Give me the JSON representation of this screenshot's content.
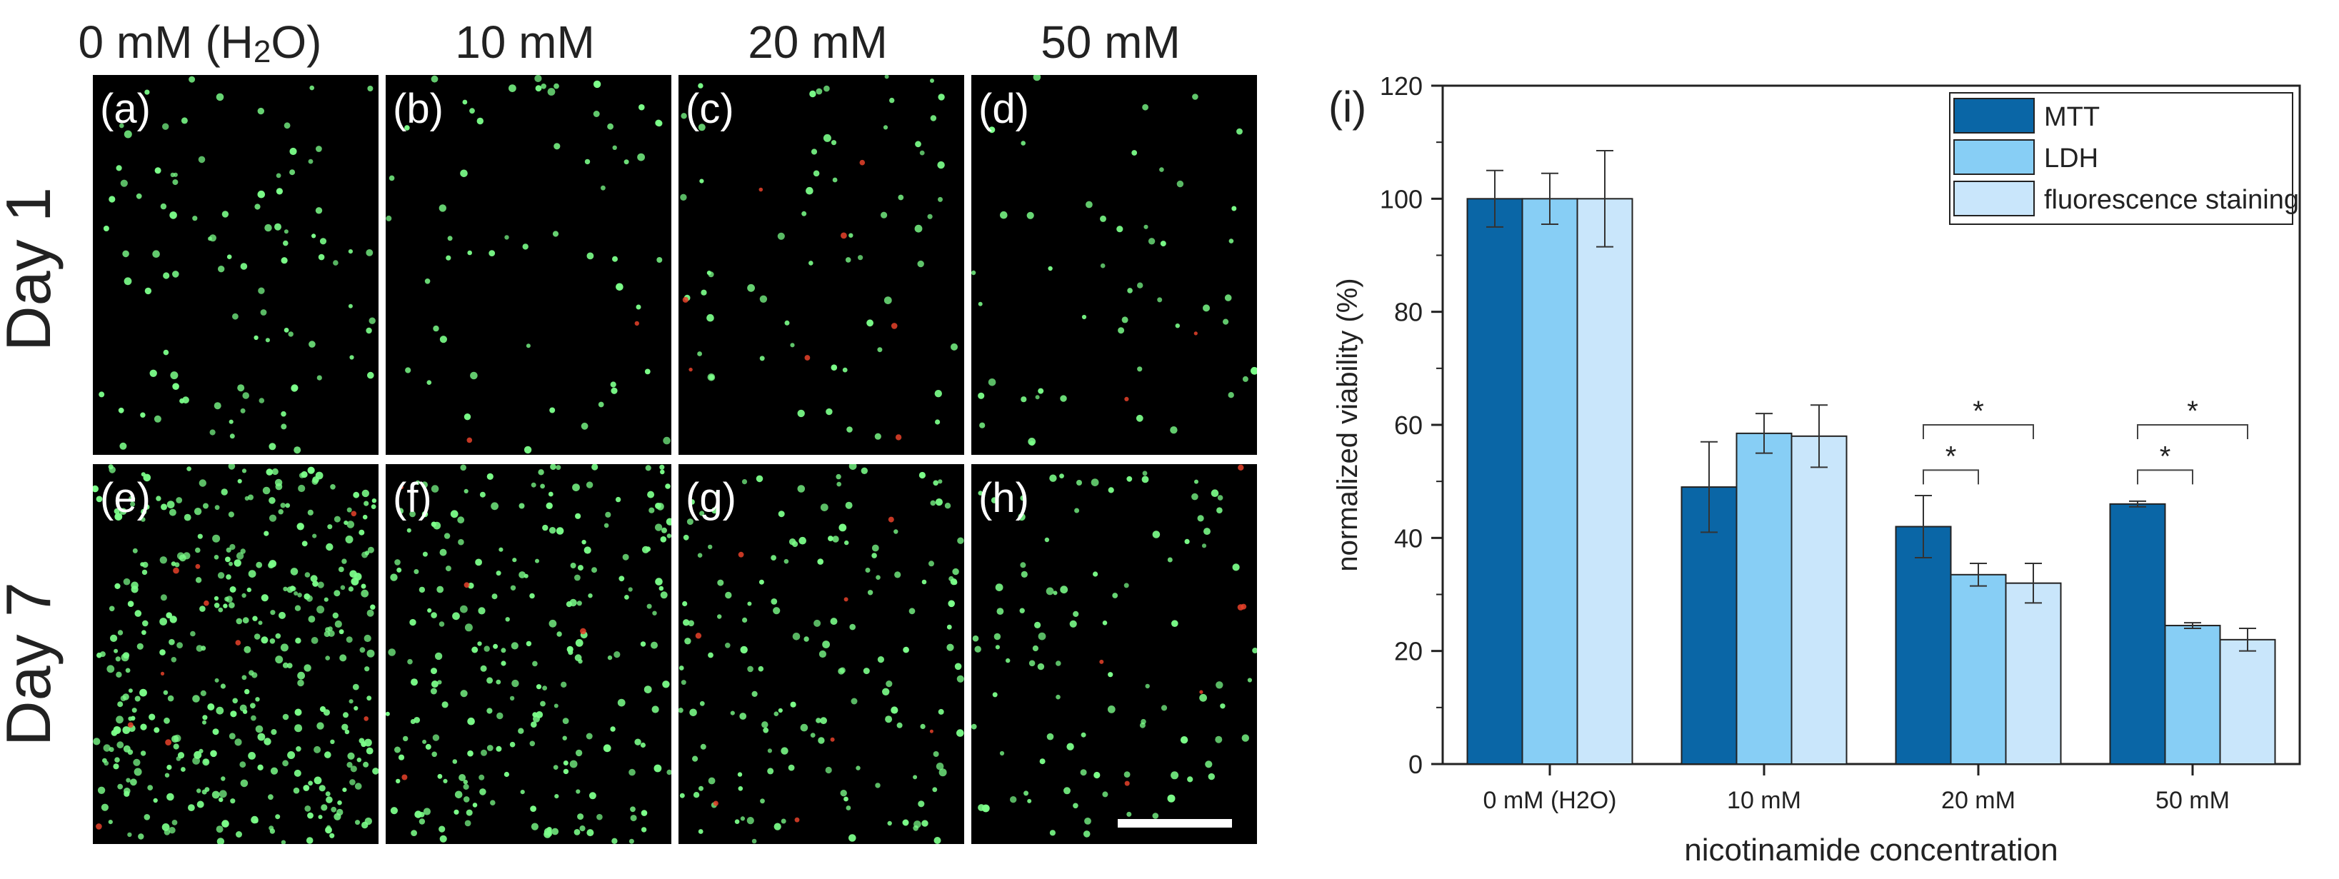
{
  "column_labels": [
    {
      "text": "0 mM (H",
      "sub": "2",
      "tail": "O)"
    },
    {
      "text": "10 mM",
      "sub": "",
      "tail": ""
    },
    {
      "text": "20 mM",
      "sub": "",
      "tail": ""
    },
    {
      "text": "50 mM",
      "sub": "",
      "tail": ""
    }
  ],
  "row_labels": [
    "Day 1",
    "Day 7"
  ],
  "panels": [
    {
      "letter": "(a)",
      "density": 95,
      "red": 0
    },
    {
      "letter": "(b)",
      "density": 55,
      "red": 2
    },
    {
      "letter": "(c)",
      "density": 60,
      "red": 8
    },
    {
      "letter": "(d)",
      "density": 48,
      "red": 2
    },
    {
      "letter": "(e)",
      "density": 380,
      "red": 10
    },
    {
      "letter": "(f)",
      "density": 230,
      "red": 4
    },
    {
      "letter": "(g)",
      "density": 150,
      "red": 8
    },
    {
      "letter": "(h)",
      "density": 95,
      "red": 6
    }
  ],
  "colors": {
    "mtt": "#0A66A6",
    "ldh": "#87CEF5",
    "fluor": "#C9E6FB",
    "live_cell": "#7CFF8A",
    "dead_cell": "#E8422A"
  },
  "chart_data": {
    "type": "bar",
    "panel_label": "(i)",
    "title": "",
    "xlabel": "nicotinamide concentration",
    "ylabel": "normalized viability (%)",
    "ylim": [
      0,
      120
    ],
    "yticks": [
      0,
      20,
      40,
      60,
      80,
      100,
      120
    ],
    "categories": [
      "0 mM (H2O)",
      "10 mM",
      "20 mM",
      "50 mM"
    ],
    "series": [
      {
        "name": "MTT",
        "values": [
          100,
          49,
          42,
          46
        ],
        "errors": [
          5,
          8,
          5.5,
          0.5
        ]
      },
      {
        "name": "LDH",
        "values": [
          100,
          58.5,
          33.5,
          24.5
        ],
        "errors": [
          4.5,
          3.5,
          2,
          0.5
        ]
      },
      {
        "name": "fluorescence staining",
        "values": [
          100,
          58,
          32,
          22
        ],
        "errors": [
          8.5,
          5.5,
          3.5,
          2
        ]
      }
    ],
    "significance": [
      {
        "category": "20 mM",
        "from": "MTT",
        "to": "LDH",
        "label": "*",
        "level": 52
      },
      {
        "category": "20 mM",
        "from": "MTT",
        "to": "fluorescence staining",
        "label": "*",
        "level": 60
      },
      {
        "category": "50 mM",
        "from": "MTT",
        "to": "LDH",
        "label": "*",
        "level": 52
      },
      {
        "category": "50 mM",
        "from": "MTT",
        "to": "fluorescence staining",
        "label": "*",
        "level": 60
      }
    ],
    "legend_position": "top-right"
  }
}
